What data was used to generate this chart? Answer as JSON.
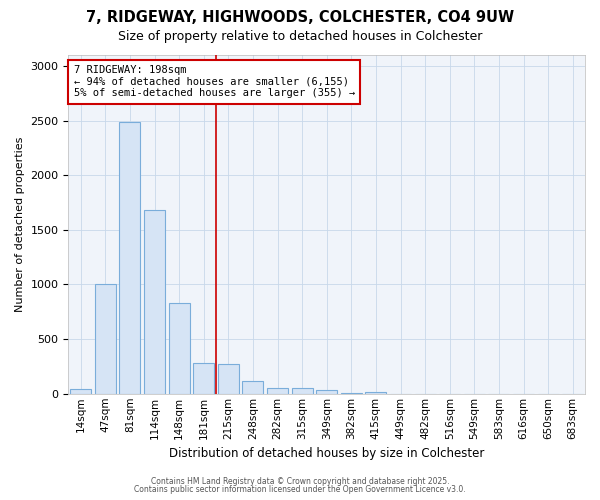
{
  "title_line1": "7, RIDGEWAY, HIGHWOODS, COLCHESTER, CO4 9UW",
  "title_line2": "Size of property relative to detached houses in Colchester",
  "xlabel": "Distribution of detached houses by size in Colchester",
  "ylabel": "Number of detached properties",
  "bar_labels": [
    "14sqm",
    "47sqm",
    "81sqm",
    "114sqm",
    "148sqm",
    "181sqm",
    "215sqm",
    "248sqm",
    "282sqm",
    "315sqm",
    "349sqm",
    "382sqm",
    "415sqm",
    "449sqm",
    "482sqm",
    "516sqm",
    "549sqm",
    "583sqm",
    "616sqm",
    "650sqm",
    "683sqm"
  ],
  "bar_values": [
    40,
    1000,
    2490,
    1680,
    830,
    280,
    270,
    115,
    50,
    50,
    30,
    5,
    20,
    0,
    0,
    0,
    0,
    0,
    0,
    0,
    0
  ],
  "bar_color": "#d6e4f5",
  "bar_edge_color": "#7aadda",
  "grid_color": "#c8d8ea",
  "background_color": "#ffffff",
  "plot_bg_color": "#f0f4fa",
  "vline_x": 5.5,
  "vline_color": "#cc0000",
  "annotation_text": "7 RIDGEWAY: 198sqm\n← 94% of detached houses are smaller (6,155)\n5% of semi-detached houses are larger (355) →",
  "annotation_box_color": "#cc0000",
  "ylim": [
    0,
    3100
  ],
  "yticks": [
    0,
    500,
    1000,
    1500,
    2000,
    2500,
    3000
  ],
  "footnote1": "Contains HM Land Registry data © Crown copyright and database right 2025.",
  "footnote2": "Contains public sector information licensed under the Open Government Licence v3.0."
}
